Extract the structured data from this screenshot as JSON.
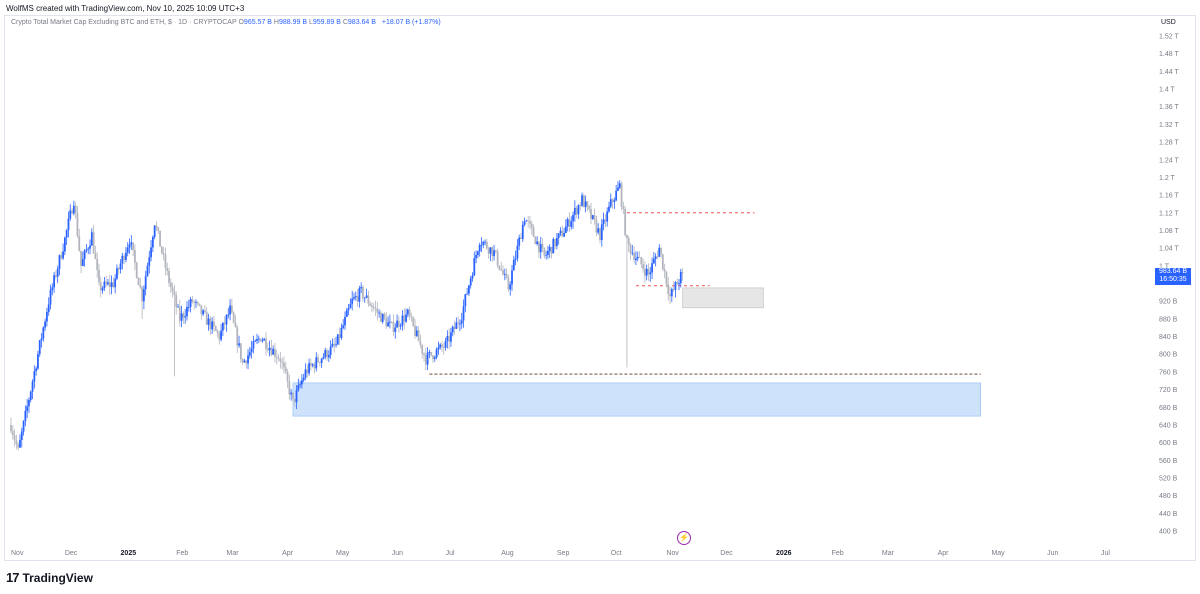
{
  "header": {
    "created_by": "WolfMS created with TradingView.com, Nov 10, 2025 10:09 UTC+3"
  },
  "legend": {
    "symbol": "Crypto Total Market Cap Excluding BTC and ETH, $ · 1D · CRYPTOCAP",
    "o_label": "O",
    "o_value": "965.57 B",
    "h_label": "H",
    "h_value": "988.99 B",
    "l_label": "L",
    "l_value": "959.89 B",
    "c_label": "C",
    "c_value": "983.64 B",
    "change": "+18.07 B (+1.87%)"
  },
  "price_axis": {
    "currency": "USD",
    "current_price": "983.64 B",
    "countdown": "16:50:35"
  },
  "footer": {
    "logo_glyph": "17",
    "brand": "TradingView"
  },
  "icons": {
    "event": "lightning-icon"
  },
  "colors": {
    "up": "#2962ff",
    "down": "#b2b5be",
    "accent": "#2962ff",
    "resistance_line": "#ef5350",
    "support_line": "#8d6e63",
    "demand_zone": "#cfe2fb",
    "supply_zone": "#e6e6e6"
  },
  "chart_data": {
    "type": "candlestick",
    "y_scale": "price (USD)",
    "ylim": [
      380000000000,
      1540000000000
    ],
    "y_ticks": [
      "1.52 T",
      "1.48 T",
      "1.44 T",
      "1.4 T",
      "1.36 T",
      "1.32 T",
      "1.28 T",
      "1.24 T",
      "1.2 T",
      "1.16 T",
      "1.12 T",
      "1.08 T",
      "1.04 T",
      "1 T",
      "920 B",
      "880 B",
      "840 B",
      "800 B",
      "760 B",
      "720 B",
      "680 B",
      "640 B",
      "600 B",
      "560 B",
      "520 B",
      "480 B",
      "440 B",
      "400 B"
    ],
    "y_tick_values": [
      1520,
      1480,
      1440,
      1400,
      1360,
      1320,
      1280,
      1240,
      1200,
      1160,
      1120,
      1080,
      1040,
      1000,
      920,
      880,
      840,
      800,
      760,
      720,
      680,
      640,
      600,
      560,
      520,
      480,
      440,
      400
    ],
    "x_ticks": [
      "Nov",
      "Dec",
      "2025",
      "Feb",
      "Mar",
      "Apr",
      "May",
      "Jun",
      "Jul",
      "Aug",
      "Sep",
      "Oct",
      "Nov",
      "Dec",
      "2026",
      "Feb",
      "Mar",
      "Apr",
      "May",
      "Jun",
      "Jul"
    ],
    "x_bold": [
      "2025",
      "2026"
    ],
    "x_range": [
      "2024-11-01",
      "2026-07-15"
    ],
    "price_path": [
      [
        "2024-11-01",
        640
      ],
      [
        "2024-11-05",
        580
      ],
      [
        "2024-11-12",
        720
      ],
      [
        "2024-11-22",
        920
      ],
      [
        "2024-12-01",
        1060
      ],
      [
        "2024-12-06",
        1150
      ],
      [
        "2024-12-10",
        1000
      ],
      [
        "2024-12-16",
        1070
      ],
      [
        "2024-12-20",
        950
      ],
      [
        "2024-12-28",
        960
      ],
      [
        "2025-01-06",
        1060
      ],
      [
        "2025-01-13",
        930
      ],
      [
        "2025-01-20",
        1100
      ],
      [
        "2025-01-27",
        980
      ],
      [
        "2025-02-03",
        880
      ],
      [
        "2025-02-10",
        920
      ],
      [
        "2025-02-25",
        840
      ],
      [
        "2025-03-03",
        900
      ],
      [
        "2025-03-10",
        780
      ],
      [
        "2025-03-20",
        840
      ],
      [
        "2025-03-31",
        790
      ],
      [
        "2025-04-07",
        690
      ],
      [
        "2025-04-14",
        760
      ],
      [
        "2025-04-22",
        790
      ],
      [
        "2025-05-01",
        820
      ],
      [
        "2025-05-10",
        920
      ],
      [
        "2025-05-15",
        940
      ],
      [
        "2025-05-25",
        890
      ],
      [
        "2025-06-01",
        860
      ],
      [
        "2025-06-10",
        890
      ],
      [
        "2025-06-20",
        790
      ],
      [
        "2025-07-01",
        820
      ],
      [
        "2025-07-10",
        890
      ],
      [
        "2025-07-20",
        1060
      ],
      [
        "2025-07-28",
        1030
      ],
      [
        "2025-08-05",
        950
      ],
      [
        "2025-08-14",
        1110
      ],
      [
        "2025-08-25",
        1020
      ],
      [
        "2025-09-05",
        1080
      ],
      [
        "2025-09-15",
        1150
      ],
      [
        "2025-09-25",
        1070
      ],
      [
        "2025-10-01",
        1140
      ],
      [
        "2025-10-06",
        1180
      ],
      [
        "2025-10-10",
        1050
      ],
      [
        "2025-10-15",
        1020
      ],
      [
        "2025-10-22",
        980
      ],
      [
        "2025-10-28",
        1040
      ],
      [
        "2025-11-03",
        930
      ],
      [
        "2025-11-10",
        983.64
      ]
    ],
    "annotations": {
      "resistance_line": {
        "y": 1120,
        "from": "2025-10-10",
        "to": "2025-12-20"
      },
      "dashed_level_upper": {
        "y": 955,
        "from": "2025-10-15",
        "to": "2025-11-25"
      },
      "support_line": {
        "y": 755,
        "from": "2025-06-22",
        "to": "2026-04-25"
      },
      "demand_zone": {
        "y_low": 660,
        "y_high": 735,
        "from": "2025-04-07",
        "to": "2026-04-25"
      },
      "supply_zone": {
        "y_low": 905,
        "y_high": 950,
        "from": "2025-11-10",
        "to": "2025-12-25"
      }
    },
    "last_price": 983.64
  }
}
